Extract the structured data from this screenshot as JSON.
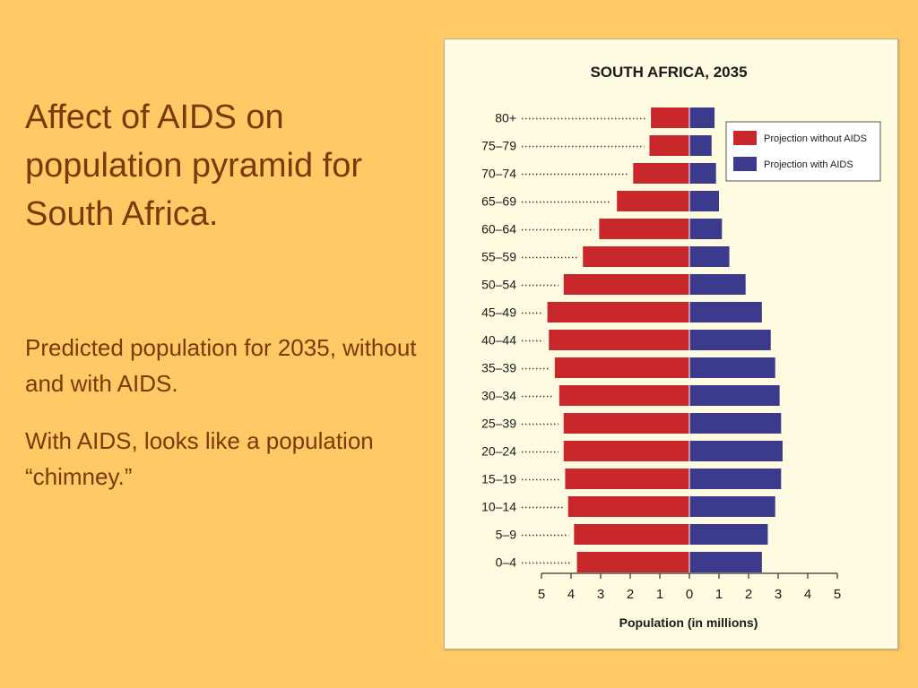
{
  "slide": {
    "title": "Affect of AIDS on population pyramid for South Africa.",
    "paragraph1": "Predicted population for 2035, without and with AIDS.",
    "paragraph2": "With AIDS, looks like a population “chimney.”"
  },
  "colors": {
    "background": "#ffc966",
    "text": "#7a3a06",
    "without_aids": "#c8282c",
    "with_aids": "#3c3a8c"
  },
  "chart_data": {
    "type": "bar",
    "orientation": "horizontal-pyramid",
    "title": "SOUTH AFRICA, 2035",
    "xlabel": "Population (in millions)",
    "xlim": [
      -5,
      5
    ],
    "x_ticks": [
      5,
      4,
      3,
      2,
      1,
      0,
      1,
      2,
      3,
      4,
      5
    ],
    "legend_position": "top-right",
    "categories": [
      "80+",
      "75–79",
      "70–74",
      "65–69",
      "60–64",
      "55–59",
      "50–54",
      "45–49",
      "40–44",
      "35–39",
      "30–34",
      "25–39",
      "20–24",
      "15–19",
      "10–14",
      "5–9",
      "0–4"
    ],
    "series": [
      {
        "name": "Projection without AIDS",
        "side": "left",
        "values": [
          1.3,
          1.35,
          1.9,
          2.45,
          3.05,
          3.6,
          4.25,
          4.8,
          4.75,
          4.55,
          4.4,
          4.25,
          4.25,
          4.2,
          4.1,
          3.9,
          3.8
        ]
      },
      {
        "name": "Projection with AIDS",
        "side": "right",
        "values": [
          0.85,
          0.75,
          0.9,
          1.0,
          1.1,
          1.35,
          1.9,
          2.45,
          2.75,
          2.9,
          3.05,
          3.1,
          3.15,
          3.1,
          2.9,
          2.65,
          2.45
        ]
      }
    ]
  }
}
